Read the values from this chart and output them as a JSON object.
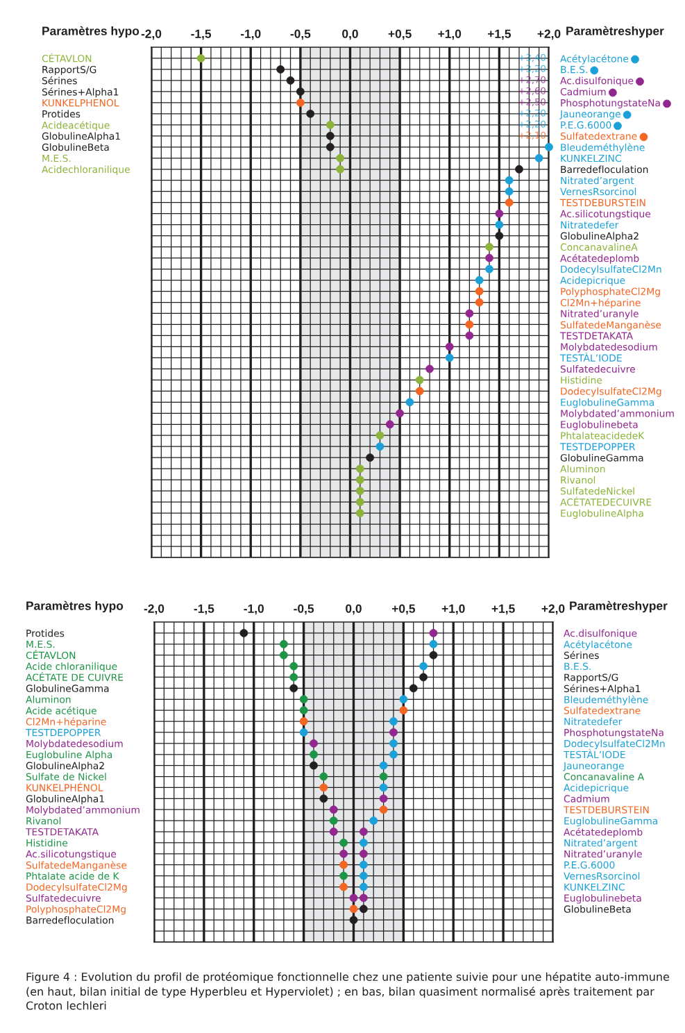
{
  "chart_data": [
    {
      "type": "scatter",
      "orientation": "horizontal",
      "marker": "circle",
      "grid": true,
      "ylabel": "Paramètres hypo",
      "y2label": "Paramètreshyper",
      "xlim": [
        -2.0,
        2.0
      ],
      "xticks": [
        {
          "value": -2.0,
          "label": "-2,0"
        },
        {
          "value": -1.9,
          "label": null
        },
        {
          "value": -1.8,
          "label": null
        },
        {
          "value": -1.7,
          "label": null
        },
        {
          "value": -1.6,
          "label": null
        },
        {
          "value": -1.5,
          "label": "-1,5"
        },
        {
          "value": -1.4,
          "label": null
        },
        {
          "value": -1.3,
          "label": null
        },
        {
          "value": -1.2,
          "label": null
        },
        {
          "value": -1.1,
          "label": null
        },
        {
          "value": -1.0,
          "label": "-1,0"
        },
        {
          "value": -0.9,
          "label": null
        },
        {
          "value": -0.8,
          "label": null
        },
        {
          "value": -0.7,
          "label": null
        },
        {
          "value": -0.6,
          "label": null
        },
        {
          "value": -0.5,
          "label": "-0,5"
        },
        {
          "value": -0.4,
          "label": null
        },
        {
          "value": -0.3,
          "label": null
        },
        {
          "value": -0.2,
          "label": null
        },
        {
          "value": -0.1,
          "label": null
        },
        {
          "value": 0.0,
          "label": "0,0"
        },
        {
          "value": 0.1,
          "label": null
        },
        {
          "value": 0.2,
          "label": null
        },
        {
          "value": 0.3,
          "label": null
        },
        {
          "value": 0.4,
          "label": null
        },
        {
          "value": 0.5,
          "label": "+0,5"
        },
        {
          "value": 0.6,
          "label": null
        },
        {
          "value": 0.7,
          "label": null
        },
        {
          "value": 0.8,
          "label": null
        },
        {
          "value": 0.9,
          "label": null
        },
        {
          "value": 1.0,
          "label": "+1,0"
        },
        {
          "value": 1.1,
          "label": null
        },
        {
          "value": 1.2,
          "label": null
        },
        {
          "value": 1.3,
          "label": null
        },
        {
          "value": 1.4,
          "label": null
        },
        {
          "value": 1.5,
          "label": "+1,5"
        },
        {
          "value": 1.6,
          "label": null
        },
        {
          "value": 1.7,
          "label": null
        },
        {
          "value": 1.8,
          "label": null
        },
        {
          "value": 1.9,
          "label": null
        },
        {
          "value": 2.0,
          "label": "+2,0"
        }
      ],
      "bands": [
        {
          "axis": "x",
          "from": -0.5,
          "to": 0.5,
          "color": "#e6e7e9"
        }
      ],
      "categories": [
        "CÉTAVLON",
        "RapportS/G",
        "Sérines",
        "Sérines+Alpha1",
        "KUNKELPHENOL",
        "Protides",
        "Acideacétique",
        "GlobulineAlpha1",
        "GlobulineBeta",
        "M.E.S.",
        "Acidechloranilique",
        null,
        null,
        null,
        null,
        null,
        null,
        null,
        null,
        null,
        null,
        null,
        null,
        null,
        null,
        null,
        null,
        null,
        null,
        null,
        null,
        null,
        null,
        null,
        null,
        null,
        null,
        null,
        null,
        null,
        null,
        null,
        null,
        null,
        null,
        null
      ],
      "y2_categories": [
        "Acétylacétone",
        "B.E.S.",
        "Ac.disulfonique",
        "Cadmium",
        "PhosphotungstateNa",
        "Jauneorange",
        "P.E.G.6000",
        "Sulfatedextrane",
        "Bleudeméthylène",
        "KUNKELZINC",
        "Barredefloculation",
        "Nitrated’argent",
        "VernesRsorcinol",
        "TESTDEBURSTEIN",
        "Ac.silicotungstique",
        "Nitratedefer",
        "GlobulineAlpha2",
        "ConcanavalineA",
        "Acétatedeplomb",
        "DodecylsulfateCl2Mn",
        "Acidepicrique",
        "PolyphosphateCl2Mg",
        "Cl2Mn+héparine",
        "Nitrated’uranyle",
        "SulfatedeManganèse",
        "TESTDETAKATA",
        "Molybdatedesodium",
        "TESTÀL’IODE",
        "Sulfatedecuivre",
        "Histidine",
        "DodecylsulfateCl2Mg",
        "EuglobulineGamma",
        "Molybdated’ammonium",
        "Euglobulinebeta",
        "PhtalateacidedeK",
        "TESTDEPOPPER",
        "GlobulineGamma",
        "Aluminon",
        "Rivanol",
        "SulfatedeNickel",
        "ACÉTATEDECUIVRE",
        "EuglobulineAlpha",
        null,
        null,
        null,
        null
      ],
      "series": [
        {
          "values": [
            -1.5,
            -0.7,
            -0.6,
            -0.5,
            -0.5,
            -0.4,
            -0.2,
            -0.2,
            -0.2,
            -0.1,
            -0.1,
            null,
            null,
            null,
            null,
            null,
            null,
            null,
            null,
            null,
            null,
            null,
            null,
            null,
            null,
            null,
            null,
            null,
            null,
            null,
            null,
            null,
            null,
            null,
            null,
            null,
            null,
            null,
            null,
            null,
            null,
            null,
            null,
            null,
            null,
            null
          ],
          "colors": [
            "#8cb33a",
            "#231f20",
            "#231f20",
            "#231f20",
            "#f26522",
            "#231f20",
            "#8cb33a",
            "#231f20",
            "#231f20",
            "#8cb33a",
            "#8cb33a",
            null,
            null,
            null,
            null,
            null,
            null,
            null,
            null,
            null,
            null,
            null,
            null,
            null,
            null,
            null,
            null,
            null,
            null,
            null,
            null,
            null,
            null,
            null,
            null,
            null,
            null,
            null,
            null,
            null,
            null,
            null,
            null,
            null,
            null,
            null
          ]
        },
        {
          "values": [
            null,
            null,
            null,
            null,
            null,
            null,
            null,
            null,
            2.0,
            1.9,
            1.7,
            1.6,
            1.6,
            1.6,
            1.5,
            1.5,
            1.5,
            1.4,
            1.4,
            1.4,
            1.3,
            1.3,
            1.3,
            1.2,
            1.2,
            1.2,
            1.0,
            1.0,
            0.8,
            0.7,
            0.7,
            0.6,
            0.5,
            0.4,
            0.3,
            0.3,
            0.2,
            0.1,
            0.1,
            0.1,
            0.1,
            0.1,
            null,
            null,
            null,
            null
          ],
          "value_labels": [
            "+3,40",
            "+3,20",
            "+2,70",
            "+2,60",
            "+2,50",
            "+2,20",
            "+2,20",
            "+2,10",
            null,
            null,
            null,
            null,
            null,
            null,
            null,
            null,
            null,
            null,
            null,
            null,
            null,
            null,
            null,
            null,
            null,
            null,
            null,
            null,
            null,
            null,
            null,
            null,
            null,
            null,
            null,
            null,
            null,
            null,
            null,
            null,
            null,
            null,
            null,
            null,
            null,
            null
          ],
          "colors": [
            "#1ba1d8",
            "#1ba1d8",
            "#92278f",
            "#92278f",
            "#92278f",
            "#1ba1d8",
            "#1ba1d8",
            "#f26522",
            "#1ba1d8",
            "#1ba1d8",
            "#231f20",
            "#1ba1d8",
            "#1ba1d8",
            "#f26522",
            "#92278f",
            "#1ba1d8",
            "#231f20",
            "#8cb33a",
            "#92278f",
            "#1ba1d8",
            "#1ba1d8",
            "#f26522",
            "#f26522",
            "#92278f",
            "#f26522",
            "#92278f",
            "#92278f",
            "#1ba1d8",
            "#92278f",
            "#8cb33a",
            "#f26522",
            "#1ba1d8",
            "#92278f",
            "#92278f",
            "#8cb33a",
            "#1ba1d8",
            "#231f20",
            "#8cb33a",
            "#8cb33a",
            "#8cb33a",
            "#8cb33a",
            "#8cb33a",
            null,
            null,
            null,
            null
          ]
        }
      ]
    },
    {
      "type": "scatter",
      "orientation": "horizontal",
      "marker": "circle",
      "grid": true,
      "ylabel": "Paramètres hypo",
      "y2label": "Paramètreshyper",
      "xlim": [
        -2.0,
        2.0
      ],
      "xticks": [
        {
          "value": -2.0,
          "label": "-2,0"
        },
        {
          "value": -1.9,
          "label": null
        },
        {
          "value": -1.8,
          "label": null
        },
        {
          "value": -1.7,
          "label": null
        },
        {
          "value": -1.6,
          "label": null
        },
        {
          "value": -1.5,
          "label": "-1,5"
        },
        {
          "value": -1.4,
          "label": null
        },
        {
          "value": -1.3,
          "label": null
        },
        {
          "value": -1.2,
          "label": null
        },
        {
          "value": -1.1,
          "label": null
        },
        {
          "value": -1.0,
          "label": "-1,0"
        },
        {
          "value": -0.9,
          "label": null
        },
        {
          "value": -0.8,
          "label": null
        },
        {
          "value": -0.7,
          "label": null
        },
        {
          "value": -0.6,
          "label": null
        },
        {
          "value": -0.5,
          "label": "-0,5"
        },
        {
          "value": -0.4,
          "label": null
        },
        {
          "value": -0.3,
          "label": null
        },
        {
          "value": -0.2,
          "label": null
        },
        {
          "value": -0.1,
          "label": null
        },
        {
          "value": 0.0,
          "label": "0,0"
        },
        {
          "value": 0.1,
          "label": null
        },
        {
          "value": 0.2,
          "label": null
        },
        {
          "value": 0.3,
          "label": null
        },
        {
          "value": 0.4,
          "label": null
        },
        {
          "value": 0.5,
          "label": "+0,5"
        },
        {
          "value": 0.6,
          "label": null
        },
        {
          "value": 0.7,
          "label": null
        },
        {
          "value": 0.8,
          "label": null
        },
        {
          "value": 0.9,
          "label": null
        },
        {
          "value": 1.0,
          "label": "+1,0"
        },
        {
          "value": 1.1,
          "label": null
        },
        {
          "value": 1.2,
          "label": null
        },
        {
          "value": 1.3,
          "label": null
        },
        {
          "value": 1.4,
          "label": null
        },
        {
          "value": 1.5,
          "label": "+1,5"
        },
        {
          "value": 1.6,
          "label": null
        },
        {
          "value": 1.7,
          "label": null
        },
        {
          "value": 1.8,
          "label": null
        },
        {
          "value": 1.9,
          "label": null
        },
        {
          "value": 2.0,
          "label": "+2,0"
        }
      ],
      "bands": [
        {
          "axis": "x",
          "from": -0.5,
          "to": 0.5,
          "color": "#e6e7e9"
        }
      ],
      "categories": [
        "Protides",
        "M.E.S.",
        "CÉTAVLON",
        "Acide chloranilique",
        "ACÉTATE DE CUIVRE",
        "GlobulineGamma",
        "Aluminon",
        "Acide acétique",
        "Cl2Mn+héparine",
        "TESTDEPOPPER",
        "Molybdatedesodium",
        "Euglobuline Alpha",
        "GlobulineAlpha2",
        "Sulfate de Nickel",
        "KUNKELPHÉNOL",
        "GlobulineAlpha1",
        "Molybdated’ammonium",
        "Rivanol",
        "TESTDETAKATA",
        "Histidine",
        "Ac.silicotungstique",
        "SulfatedeManganèse",
        "Phtalate acide de K",
        "DodecylsulfateCl2Mg",
        "Sulfatedecuivre",
        "PolyphosphateCl2Mg",
        "Barredefloculation",
        null,
        null
      ],
      "y2_categories": [
        "Ac.disulfonique",
        "Acétylacétone",
        "Sérines",
        "B.E.S.",
        "RapportS/G",
        "Sérines+Alpha1",
        "Bleudeméthylène",
        "Sulfatedextrane",
        "Nitratedefer",
        "PhosphotungstateNa",
        "DodecylsulfateCl2Mn",
        "TESTÀL’IODE",
        "Jauneorange",
        "Concanavaline A",
        "Acidepicrique",
        "Cadmium",
        "TESTDEBURSTEIN",
        "EuglobulineGamma",
        "Acétatedeplomb",
        "Nitrated’argent",
        "Nitrated’uranyle",
        "P.E.G.6000",
        "VernesRsorcinol",
        "KUNKELZINC",
        "Euglobulinebeta",
        "GlobulineBeta",
        null,
        null,
        null
      ],
      "series": [
        {
          "values": [
            -1.1,
            -0.7,
            -0.7,
            -0.6,
            -0.6,
            -0.6,
            -0.5,
            -0.5,
            -0.5,
            -0.5,
            -0.4,
            -0.4,
            -0.4,
            -0.3,
            -0.3,
            -0.3,
            -0.2,
            -0.2,
            -0.2,
            -0.1,
            -0.1,
            -0.1,
            -0.1,
            -0.1,
            0.0,
            0.0,
            0.0,
            null,
            null
          ],
          "colors": [
            "#231f20",
            "#1e9447",
            "#1e9447",
            "#1e9447",
            "#1e9447",
            "#231f20",
            "#1e9447",
            "#1e9447",
            "#f26522",
            "#1ba1d8",
            "#92278f",
            "#1e9447",
            "#231f20",
            "#1e9447",
            "#f26522",
            "#231f20",
            "#92278f",
            "#1e9447",
            "#92278f",
            "#1e9447",
            "#92278f",
            "#f26522",
            "#1e9447",
            "#f26522",
            "#92278f",
            "#f26522",
            "#231f20",
            null,
            null
          ]
        },
        {
          "values": [
            0.8,
            0.8,
            0.8,
            0.7,
            0.7,
            0.6,
            0.5,
            0.5,
            0.4,
            0.4,
            0.4,
            0.4,
            0.3,
            0.3,
            0.3,
            0.3,
            0.3,
            0.2,
            0.1,
            0.1,
            0.1,
            0.1,
            0.1,
            0.1,
            0.1,
            0.1,
            null,
            null,
            null
          ],
          "colors": [
            "#92278f",
            "#1ba1d8",
            "#231f20",
            "#1ba1d8",
            "#231f20",
            "#231f20",
            "#1ba1d8",
            "#f26522",
            "#1ba1d8",
            "#92278f",
            "#1ba1d8",
            "#1ba1d8",
            "#1ba1d8",
            "#1e9447",
            "#1ba1d8",
            "#92278f",
            "#f26522",
            "#1ba1d8",
            "#92278f",
            "#1ba1d8",
            "#92278f",
            "#1ba1d8",
            "#1ba1d8",
            "#1ba1d8",
            "#92278f",
            "#231f20",
            null,
            null,
            null
          ]
        }
      ],
      "annotations": [
        "Figure 4 : Evolution du profil de protéomique fonctionnelle chez une patiente suivie pour une hépatite auto-immune (en haut, bilan initial de type Hyperbleu et Hyperviolet) ; en bas, bilan quasiment normalisé après traitement par Croton lechleri"
      ]
    }
  ]
}
